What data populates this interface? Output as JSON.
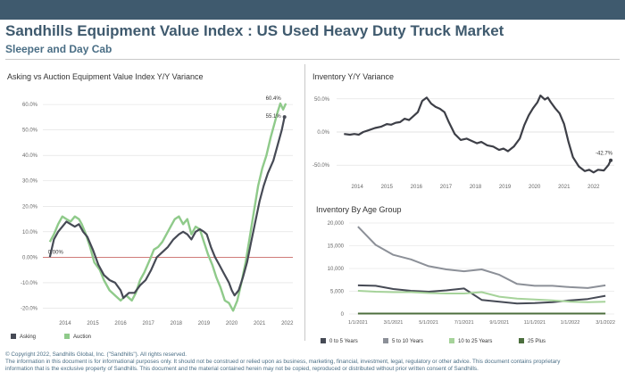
{
  "header": {
    "title": "Sandhills Equipment Value Index : US Used Heavy Duty Truck Market",
    "subtitle": "Sleeper and Day Cab"
  },
  "footer": {
    "line1": "© Copyright 2022, Sandhills Global, Inc. (\"Sandhills\"). All rights reserved.",
    "line2": "The information in this document is for informational purposes only.  It should not be construed or relied upon as business, marketing, financial, investment, legal, regulatory or other advice. This document contains proprietary",
    "line3": "information that is the exclusive property of Sandhills. This document and the material contained herein may not be copied, reproduced or distributed without prior written consent of Sandhills."
  },
  "colors": {
    "asking": "#464a55",
    "auction": "#8fca8a",
    "inventory": "#3d3f47",
    "zero_line": "#c0504d",
    "grid": "#dddddd",
    "axis_text": "#666666"
  },
  "chart_data": [
    {
      "type": "line",
      "title": "Asking vs Auction Equipment Value Index Y/Y Variance",
      "x_ticks": [
        2014,
        2015,
        2016,
        2017,
        2018,
        2019,
        2020,
        2021,
        2022
      ],
      "y_ticks": [
        "60.0%",
        "50.0%",
        "40.0%",
        "30.0%",
        "20.0%",
        "10.0%",
        "0.00%",
        "-10.0%",
        "-20.0%"
      ],
      "ylim": [
        -23,
        66
      ],
      "xlim": [
        2013.2,
        2022.2
      ],
      "annotations": [
        {
          "label": "60.4%",
          "series": "Auction"
        },
        {
          "label": "55.1%",
          "series": "Asking"
        },
        {
          "label": "0.00%",
          "x": 2013.45,
          "y": 0
        }
      ],
      "series": [
        {
          "name": "Asking",
          "points": [
            [
              2013.45,
              0
            ],
            [
              2013.6,
              7
            ],
            [
              2013.75,
              10
            ],
            [
              2013.9,
              12
            ],
            [
              2014.05,
              14
            ],
            [
              2014.2,
              13
            ],
            [
              2014.35,
              12
            ],
            [
              2014.5,
              13
            ],
            [
              2014.65,
              10
            ],
            [
              2014.8,
              8
            ],
            [
              2015.0,
              3
            ],
            [
              2015.2,
              -3
            ],
            [
              2015.4,
              -7
            ],
            [
              2015.6,
              -9
            ],
            [
              2015.8,
              -10
            ],
            [
              2016.0,
              -13
            ],
            [
              2016.1,
              -16
            ],
            [
              2016.3,
              -14
            ],
            [
              2016.5,
              -14
            ],
            [
              2016.7,
              -11
            ],
            [
              2016.9,
              -9
            ],
            [
              2017.1,
              -5
            ],
            [
              2017.3,
              0
            ],
            [
              2017.5,
              2
            ],
            [
              2017.7,
              4
            ],
            [
              2017.9,
              7
            ],
            [
              2018.1,
              9
            ],
            [
              2018.25,
              10
            ],
            [
              2018.4,
              9
            ],
            [
              2018.55,
              7
            ],
            [
              2018.7,
              10
            ],
            [
              2018.85,
              11
            ],
            [
              2019.0,
              10
            ],
            [
              2019.1,
              9
            ],
            [
              2019.25,
              4
            ],
            [
              2019.4,
              0
            ],
            [
              2019.55,
              -3
            ],
            [
              2019.7,
              -6
            ],
            [
              2019.9,
              -10
            ],
            [
              2020.0,
              -13
            ],
            [
              2020.1,
              -15
            ],
            [
              2020.25,
              -13
            ],
            [
              2020.4,
              -8
            ],
            [
              2020.55,
              -2
            ],
            [
              2020.7,
              6
            ],
            [
              2020.85,
              14
            ],
            [
              2021.0,
              22
            ],
            [
              2021.15,
              28
            ],
            [
              2021.3,
              33
            ],
            [
              2021.5,
              38
            ],
            [
              2021.65,
              44
            ],
            [
              2021.8,
              50
            ],
            [
              2021.9,
              55.1
            ]
          ]
        },
        {
          "name": "Auction",
          "points": [
            [
              2013.45,
              6
            ],
            [
              2013.6,
              9
            ],
            [
              2013.75,
              13
            ],
            [
              2013.9,
              16
            ],
            [
              2014.05,
              15
            ],
            [
              2014.2,
              14
            ],
            [
              2014.35,
              16
            ],
            [
              2014.5,
              15
            ],
            [
              2014.6,
              13
            ],
            [
              2014.75,
              9
            ],
            [
              2014.9,
              4
            ],
            [
              2015.05,
              -2
            ],
            [
              2015.25,
              -5
            ],
            [
              2015.4,
              -9
            ],
            [
              2015.6,
              -13
            ],
            [
              2015.8,
              -15
            ],
            [
              2016.0,
              -17
            ],
            [
              2016.2,
              -15
            ],
            [
              2016.4,
              -17
            ],
            [
              2016.55,
              -14
            ],
            [
              2016.7,
              -9
            ],
            [
              2016.85,
              -6
            ],
            [
              2017.05,
              -1
            ],
            [
              2017.2,
              3
            ],
            [
              2017.35,
              4
            ],
            [
              2017.5,
              6
            ],
            [
              2017.65,
              9
            ],
            [
              2017.8,
              12
            ],
            [
              2017.95,
              15
            ],
            [
              2018.1,
              16
            ],
            [
              2018.25,
              13
            ],
            [
              2018.4,
              15
            ],
            [
              2018.55,
              9
            ],
            [
              2018.7,
              12
            ],
            [
              2018.85,
              11
            ],
            [
              2019.0,
              6
            ],
            [
              2019.15,
              1
            ],
            [
              2019.3,
              -3
            ],
            [
              2019.45,
              -8
            ],
            [
              2019.6,
              -12
            ],
            [
              2019.75,
              -17
            ],
            [
              2019.9,
              -18
            ],
            [
              2020.05,
              -21
            ],
            [
              2020.2,
              -17
            ],
            [
              2020.35,
              -10
            ],
            [
              2020.5,
              -2
            ],
            [
              2020.65,
              8
            ],
            [
              2020.8,
              18
            ],
            [
              2020.95,
              28
            ],
            [
              2021.1,
              35
            ],
            [
              2021.25,
              40
            ],
            [
              2021.4,
              47
            ],
            [
              2021.55,
              53
            ],
            [
              2021.65,
              57
            ],
            [
              2021.75,
              60.4
            ],
            [
              2021.85,
              58
            ],
            [
              2021.95,
              60.4
            ]
          ]
        }
      ],
      "legend": [
        {
          "label": "Asking"
        },
        {
          "label": "Auction"
        }
      ],
      "grid": true,
      "legend_position": "bottom-left"
    },
    {
      "type": "line",
      "title": "Inventory Y/Y Variance",
      "x_ticks": [
        2014,
        2015,
        2016,
        2017,
        2018,
        2019,
        2020,
        2021,
        2022
      ],
      "y_ticks": [
        "50.0%",
        "0.0%",
        "-50.0%"
      ],
      "ylim": [
        -70,
        70
      ],
      "xlim": [
        2013.3,
        2022.7
      ],
      "annotations": [
        {
          "label": "-42.7%",
          "series": "Inventory"
        }
      ],
      "series": [
        {
          "name": "Inventory",
          "points": [
            [
              2013.55,
              -3
            ],
            [
              2013.75,
              -4
            ],
            [
              2013.9,
              -3
            ],
            [
              2014.05,
              -4
            ],
            [
              2014.2,
              0
            ],
            [
              2014.4,
              3
            ],
            [
              2014.6,
              6
            ],
            [
              2014.8,
              8
            ],
            [
              2015.0,
              12
            ],
            [
              2015.15,
              11
            ],
            [
              2015.3,
              14
            ],
            [
              2015.45,
              15
            ],
            [
              2015.6,
              20
            ],
            [
              2015.75,
              18
            ],
            [
              2015.9,
              24
            ],
            [
              2016.05,
              30
            ],
            [
              2016.2,
              47
            ],
            [
              2016.35,
              52
            ],
            [
              2016.5,
              43
            ],
            [
              2016.65,
              38
            ],
            [
              2016.8,
              35
            ],
            [
              2016.95,
              30
            ],
            [
              2017.1,
              15
            ],
            [
              2017.3,
              -3
            ],
            [
              2017.5,
              -12
            ],
            [
              2017.7,
              -10
            ],
            [
              2017.9,
              -14
            ],
            [
              2018.05,
              -17
            ],
            [
              2018.2,
              -15
            ],
            [
              2018.4,
              -20
            ],
            [
              2018.6,
              -22
            ],
            [
              2018.8,
              -27
            ],
            [
              2018.95,
              -25
            ],
            [
              2019.1,
              -29
            ],
            [
              2019.3,
              -22
            ],
            [
              2019.5,
              -10
            ],
            [
              2019.65,
              10
            ],
            [
              2019.8,
              25
            ],
            [
              2019.95,
              36
            ],
            [
              2020.1,
              45
            ],
            [
              2020.2,
              55
            ],
            [
              2020.35,
              49
            ],
            [
              2020.45,
              52
            ],
            [
              2020.55,
              45
            ],
            [
              2020.7,
              36
            ],
            [
              2020.85,
              28
            ],
            [
              2021.0,
              12
            ],
            [
              2021.15,
              -15
            ],
            [
              2021.3,
              -38
            ],
            [
              2021.5,
              -52
            ],
            [
              2021.7,
              -59
            ],
            [
              2021.85,
              -57
            ],
            [
              2022.0,
              -61
            ],
            [
              2022.15,
              -57
            ],
            [
              2022.35,
              -58
            ],
            [
              2022.5,
              -50
            ],
            [
              2022.58,
              -42.7
            ]
          ]
        }
      ],
      "grid": true
    },
    {
      "type": "line",
      "title": "Inventory By Age Group",
      "x_ticks": [
        "1/1/2021",
        "3/1/2021",
        "5/1/2021",
        "7/1/2021",
        "9/1/2021",
        "11/1/2021",
        "1/1/2022",
        "3/1/2022"
      ],
      "y_ticks": [
        "20,000",
        "15,000",
        "10,000",
        "5,000",
        "0"
      ],
      "ylim": [
        0,
        20000
      ],
      "xlim": [
        -0.5,
        14.5
      ],
      "series": [
        {
          "name": "0 to 5 Years",
          "values": [
            6300,
            6200,
            5500,
            5100,
            4900,
            5200,
            5600,
            3100,
            2700,
            2300,
            2400,
            2600,
            3000,
            3300,
            4000
          ]
        },
        {
          "name": "5 to 10 Years",
          "values": [
            19200,
            15200,
            13000,
            12000,
            10500,
            9800,
            9400,
            9800,
            8600,
            6600,
            6200,
            6200,
            5900,
            5700,
            6300
          ]
        },
        {
          "name": "10 to 25 Years",
          "values": [
            5100,
            4900,
            4800,
            4800,
            4600,
            4500,
            4500,
            4800,
            3800,
            3400,
            3200,
            3000,
            2700,
            2600,
            2700
          ]
        },
        {
          "name": "25 Plus",
          "values": [
            100,
            100,
            100,
            100,
            100,
            100,
            100,
            100,
            100,
            100,
            100,
            100,
            100,
            100,
            100
          ]
        }
      ],
      "series_colors": [
        "#464a55",
        "#8c9098",
        "#a6d39a",
        "#4c6f3e"
      ],
      "legend": [
        {
          "label": "0 to 5 Years"
        },
        {
          "label": "5 to 10 Years"
        },
        {
          "label": "10 to 25 Years"
        },
        {
          "label": "25 Plus"
        }
      ],
      "grid": true,
      "legend_position": "bottom"
    }
  ]
}
